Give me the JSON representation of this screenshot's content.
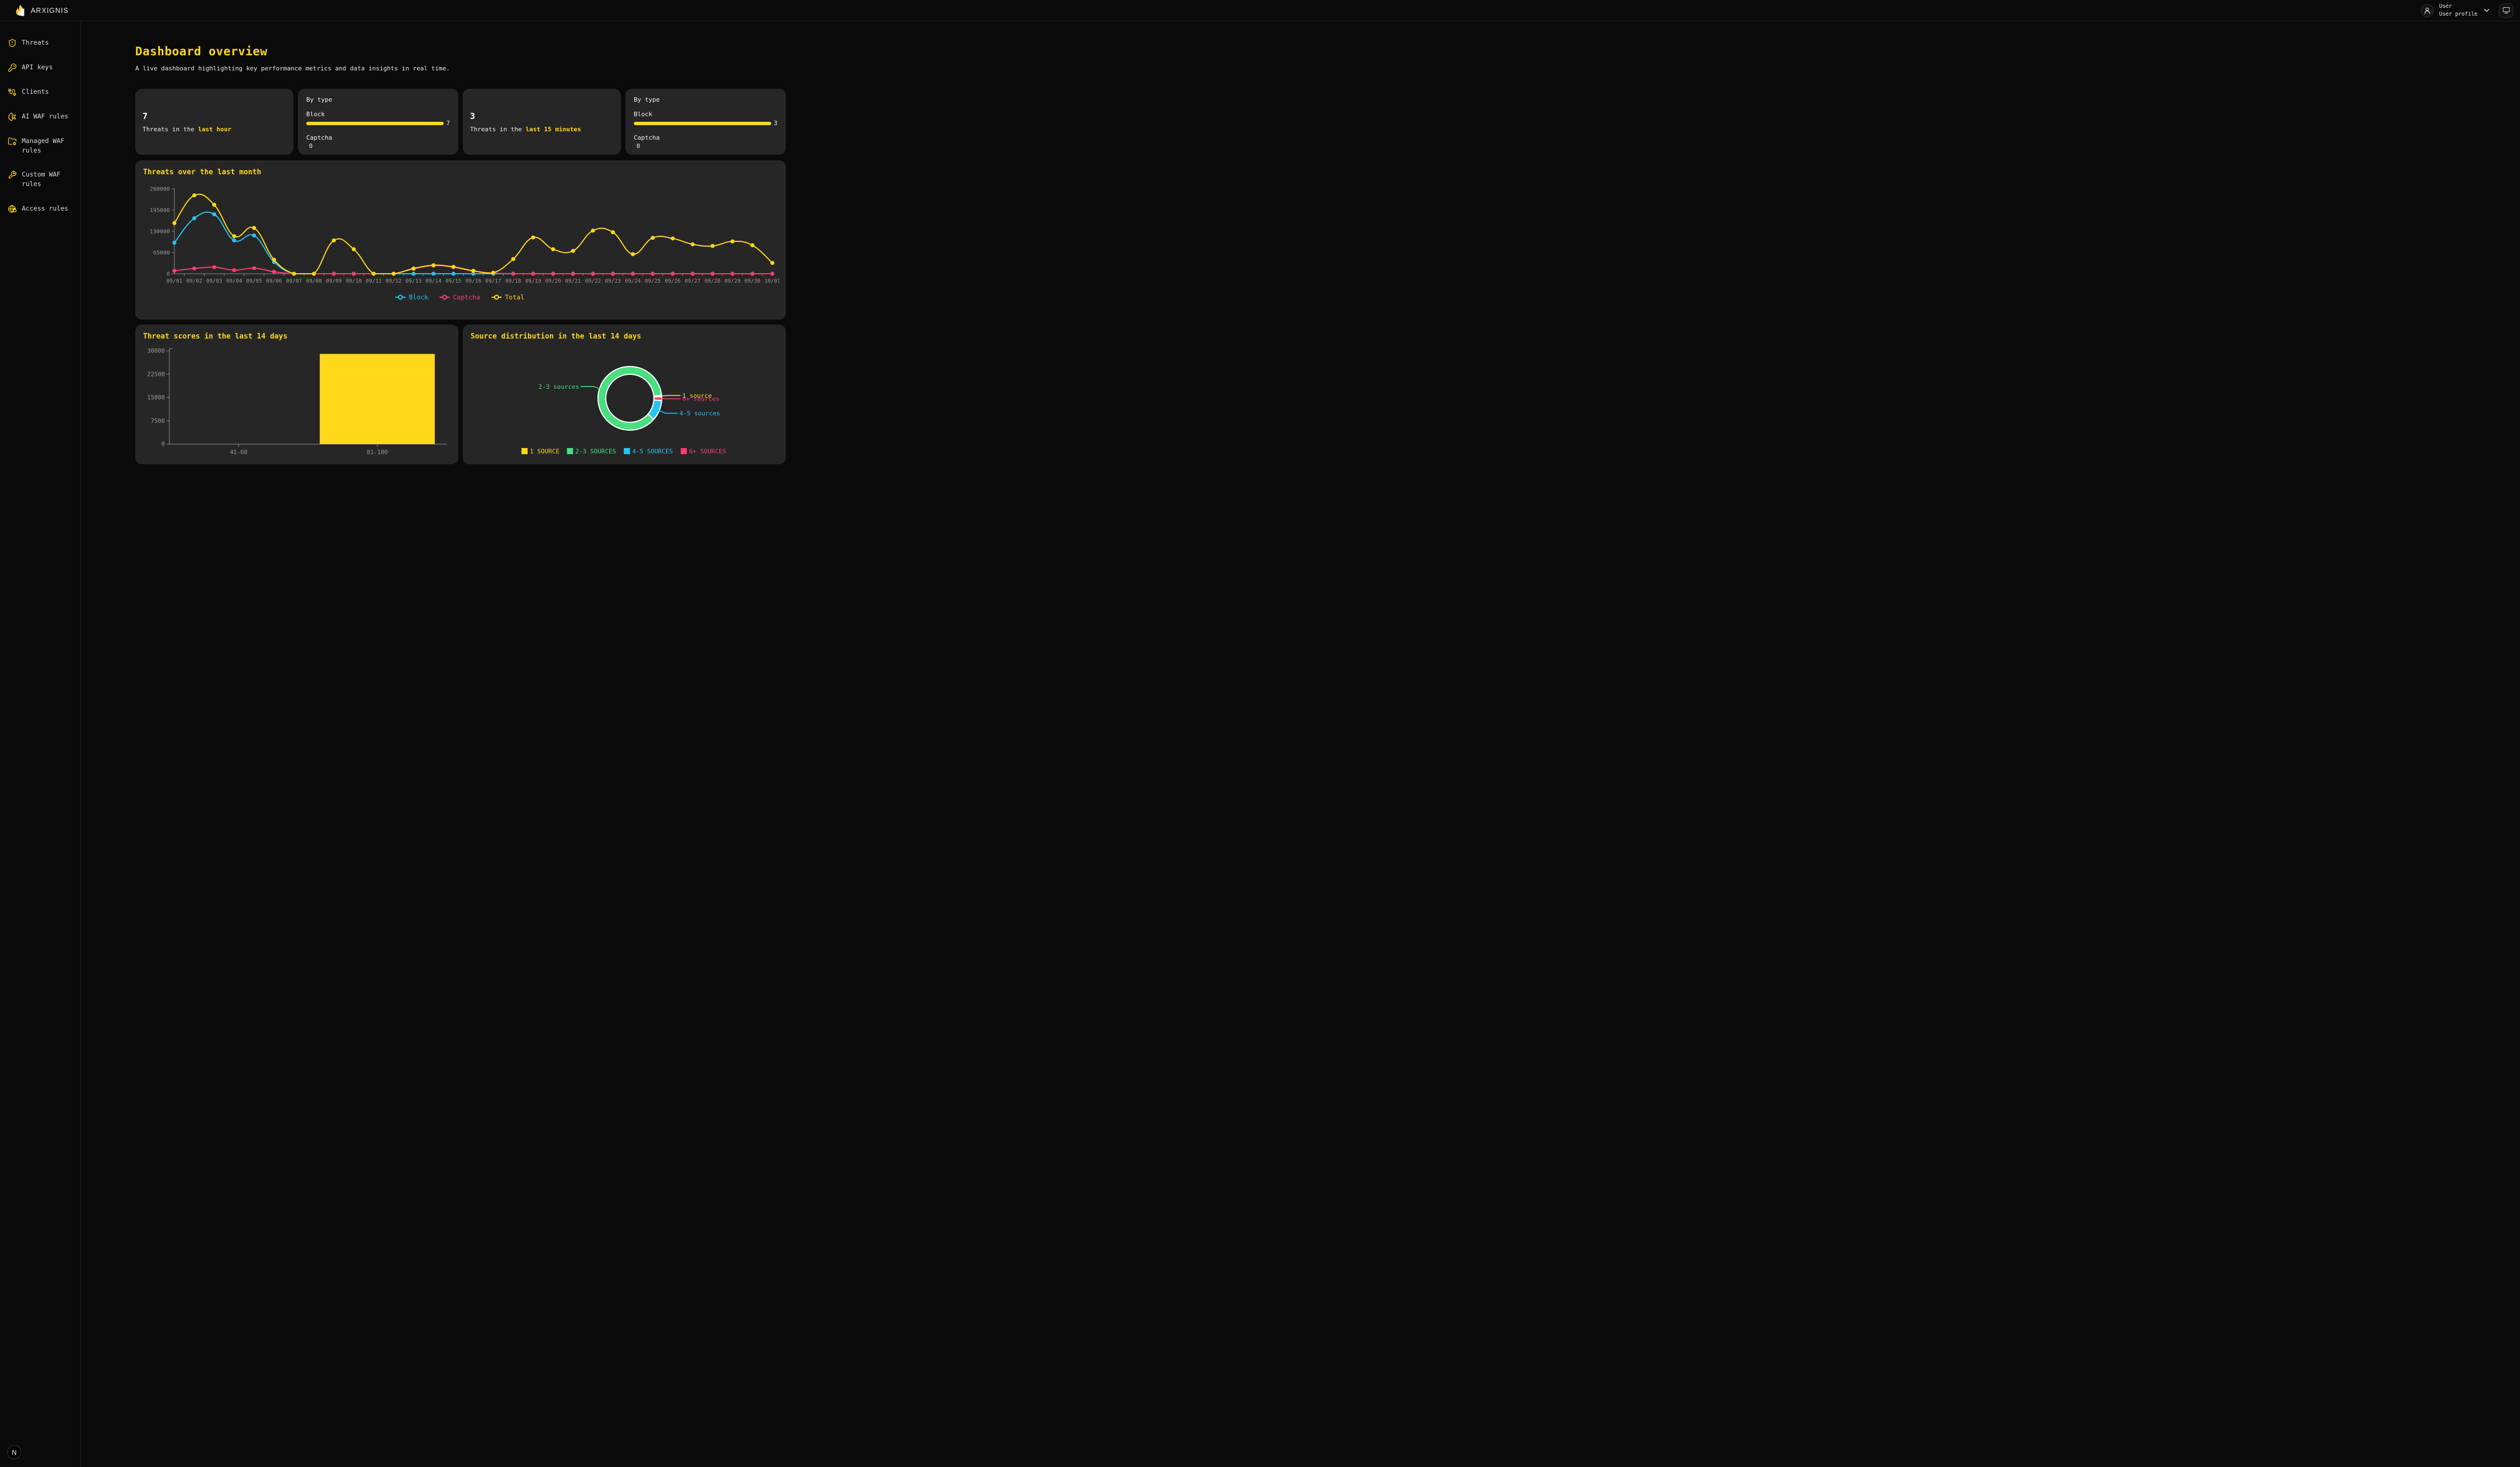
{
  "topbar": {
    "brand": "ARXIGNIS",
    "user_name": "User",
    "user_role": "User profile"
  },
  "sidebar": {
    "items": [
      {
        "label": "Threats",
        "icon": "shield-alert-icon"
      },
      {
        "label": "API keys",
        "icon": "key-icon"
      },
      {
        "label": "Clients",
        "icon": "cable-icon"
      },
      {
        "label": "AI WAF rules",
        "icon": "brain-circuit-icon"
      },
      {
        "label": "Managed WAF rules",
        "icon": "folder-cog-icon"
      },
      {
        "label": "Custom WAF rules",
        "icon": "wrench-icon"
      },
      {
        "label": "Access rules",
        "icon": "globe-lock-icon"
      }
    ],
    "dev_badge": "N"
  },
  "page": {
    "title": "Dashboard overview",
    "subtitle": "A live dashboard highlighting key performance metrics and data insights in real time."
  },
  "cards": [
    {
      "type": "summary",
      "value": "7",
      "label_prefix": "Threats in the ",
      "label_highlight": "last hour"
    },
    {
      "type": "by_type",
      "title": "By type",
      "rows": [
        {
          "label": "Block",
          "value": "7"
        },
        {
          "label": "Captcha",
          "value": "0"
        }
      ]
    },
    {
      "type": "summary",
      "value": "3",
      "label_prefix": "Threats in the ",
      "label_highlight": "last 15 minutes"
    },
    {
      "type": "by_type",
      "title": "By type",
      "rows": [
        {
          "label": "Block",
          "value": "3"
        },
        {
          "label": "Captcha",
          "value": "0"
        }
      ]
    }
  ],
  "colors": {
    "accent": "#ffd81a",
    "cyan": "#27c3f3",
    "pink": "#f43f73",
    "green": "#4ade80",
    "axis": "#8c8c8c",
    "card_bg": "#262626"
  },
  "chart_data": [
    {
      "type": "line",
      "title": "Threats over the last month",
      "x": [
        "09/01",
        "09/02",
        "09/03",
        "09/04",
        "09/05",
        "09/06",
        "09/07",
        "09/08",
        "09/09",
        "09/10",
        "09/11",
        "09/12",
        "09/13",
        "09/14",
        "09/15",
        "09/16",
        "09/17",
        "09/18",
        "09/19",
        "09/20",
        "09/21",
        "09/22",
        "09/23",
        "09/24",
        "09/25",
        "09/26",
        "09/27",
        "09/28",
        "09/29",
        "09/30",
        "10/01"
      ],
      "series": [
        {
          "name": "Block",
          "color": "#27c3f3",
          "values": [
            95000,
            170000,
            182000,
            102000,
            117000,
            36000,
            0,
            0,
            0,
            0,
            0,
            0,
            0,
            0,
            0,
            0,
            0,
            0,
            0,
            0,
            0,
            0,
            0,
            0,
            0,
            0,
            0,
            0,
            0,
            0,
            0
          ]
        },
        {
          "name": "Captcha",
          "color": "#f43f73",
          "values": [
            9000,
            16000,
            20000,
            11000,
            17000,
            6000,
            0,
            0,
            0,
            0,
            0,
            0,
            15000,
            25000,
            20000,
            8000,
            2000,
            0,
            0,
            0,
            0,
            0,
            0,
            0,
            0,
            0,
            0,
            0,
            0,
            0,
            0
          ]
        },
        {
          "name": "Total",
          "color": "#ffd81a",
          "values": [
            155000,
            240000,
            211000,
            115000,
            140000,
            43000,
            0,
            0,
            102000,
            75000,
            0,
            0,
            16000,
            26000,
            21000,
            9000,
            3000,
            45000,
            111000,
            75000,
            70000,
            132000,
            127000,
            60000,
            110000,
            108000,
            90000,
            85000,
            99000,
            87000,
            33000
          ]
        }
      ],
      "ylim": [
        0,
        260000
      ],
      "yticks": [
        0,
        65000,
        130000,
        195000,
        260000
      ],
      "grid": false,
      "legend_position": "bottom"
    },
    {
      "type": "bar",
      "title": "Threat scores in the last 14 days",
      "categories": [
        "41-60",
        "81-100"
      ],
      "values": [
        0,
        29000
      ],
      "yticks": [
        0,
        7500,
        15000,
        22500,
        30000
      ],
      "ylim": [
        0,
        30000
      ],
      "bar_color": "#ffd81a",
      "grid": false
    },
    {
      "type": "pie",
      "title": "Source distribution in the last 14 days",
      "donut": true,
      "start_angle": 84.5,
      "slices": [
        {
          "label": "1 source",
          "legend": "1 SOURCE",
          "color": "#ffd81a",
          "pct": 0.7
        },
        {
          "label": "6+ sources",
          "legend": "6+ SOURCES",
          "color": "#f43f73",
          "pct": 2.0
        },
        {
          "label": "4-5 sources",
          "legend": "4-5 SOURCES",
          "color": "#27c3f3",
          "pct": 10.3
        },
        {
          "label": "2-3 sources",
          "legend": "2-3 SOURCES",
          "color": "#4ade80",
          "pct": 87.0
        }
      ],
      "legend_order": [
        "1 SOURCE",
        "2-3 SOURCES",
        "4-5 SOURCES",
        "6+ SOURCES"
      ],
      "legend_position": "bottom"
    }
  ]
}
